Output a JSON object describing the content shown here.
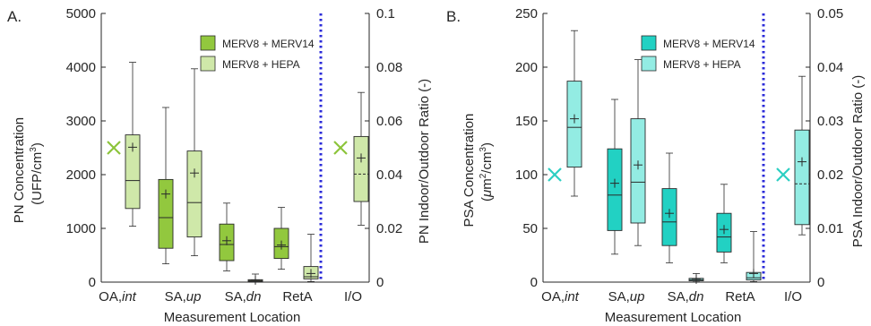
{
  "colors": {
    "a_merv14": "#92c83e",
    "a_hepa": "#cfe8a9",
    "a_cross": "#8cc43a",
    "b_merv14": "#22d1c3",
    "b_hepa": "#93ece3",
    "b_cross": "#2ccfc2",
    "divider": "#2b2bd9",
    "axis": "#262626",
    "box_edge": "#2a2a2a"
  },
  "shared": {
    "xlabel": "Measurement Location",
    "categories": [
      {
        "main": "OA,",
        "italic": "int"
      },
      {
        "main": "SA,",
        "italic": "up"
      },
      {
        "main": "SA,",
        "italic": "dn"
      },
      {
        "main": "RetA",
        "italic": ""
      },
      {
        "main": "I/O",
        "italic": ""
      }
    ],
    "legend": [
      "MERV8 + MERV14",
      "MERV8 + HEPA"
    ]
  },
  "chart_data": [
    {
      "type": "box",
      "panel_label": "A.",
      "ylabel_left_line1": "PN Concentration",
      "ylabel_left_line2": "(UFP/cm",
      "ylabel_left_sup": "3",
      "ylabel_left_tail": ")",
      "ylabel_right": "PN Indoor/Outdoor Ratio (-)",
      "ylim_left": [
        0,
        5000
      ],
      "ylim_right": [
        0,
        0.1
      ],
      "yticks_left": [
        "0",
        "1000",
        "2000",
        "3000",
        "4000",
        "5000"
      ],
      "yticks_right": [
        "0",
        "0.02",
        "0.04",
        "0.06",
        "0.08",
        "0.1"
      ],
      "boxes": [
        {
          "category": "OA,int",
          "series": "MERV8 + HEPA",
          "axis": "left",
          "whisker_low": 1040,
          "q1": 1370,
          "median": 1890,
          "q3": 2740,
          "whisker_high": 4090,
          "mean": 2510
        },
        {
          "category": "SA,up",
          "series": "MERV8 + MERV14",
          "axis": "left",
          "whisker_low": 340,
          "q1": 630,
          "median": 1200,
          "q3": 1910,
          "whisker_high": 3250,
          "mean": 1640
        },
        {
          "category": "SA,up",
          "series": "MERV8 + HEPA",
          "axis": "left",
          "whisker_low": 490,
          "q1": 840,
          "median": 1480,
          "q3": 2440,
          "whisker_high": 3970,
          "mean": 2030
        },
        {
          "category": "SA,dn",
          "series": "MERV8 + MERV14",
          "axis": "left",
          "whisker_low": 210,
          "q1": 400,
          "median": 700,
          "q3": 1080,
          "whisker_high": 1470,
          "mean": 770
        },
        {
          "category": "SA,dn",
          "series": "MERV8 + HEPA",
          "axis": "left",
          "whisker_low": 5,
          "q1": 15,
          "median": 30,
          "q3": 45,
          "whisker_high": 150,
          "mean": 35
        },
        {
          "category": "RetA",
          "series": "MERV8 + MERV14",
          "axis": "left",
          "whisker_low": 240,
          "q1": 440,
          "median": 660,
          "q3": 1000,
          "whisker_high": 1390,
          "mean": 690
        },
        {
          "category": "RetA",
          "series": "MERV8 + HEPA",
          "axis": "left",
          "whisker_low": 10,
          "q1": 60,
          "median": 100,
          "q3": 290,
          "whisker_high": 890,
          "mean": 160
        },
        {
          "category": "I/O",
          "series": "MERV8 + HEPA",
          "axis": "right",
          "whisker_low": 0.0212,
          "q1": 0.03,
          "median": 0.0402,
          "q3": 0.0542,
          "whisker_high": 0.0706,
          "mean": 0.0462,
          "median_dashed": true
        }
      ],
      "crosses": [
        {
          "category": "OA,int",
          "axis": "left",
          "value": 2500
        },
        {
          "category": "I/O",
          "axis": "right",
          "value": 0.05
        }
      ]
    },
    {
      "type": "box",
      "panel_label": "B.",
      "ylabel_left_line1": "PSA Concentration",
      "ylabel_left_mu": "μ",
      "ylabel_left_line2": "m",
      "ylabel_left_sup": "2",
      "ylabel_left_mid": "/cm",
      "ylabel_left_sup2": "3",
      "ylabel_left_tail": ")",
      "ylabel_right": "PSA Indoor/Outdoor Ratio (-)",
      "ylim_left": [
        0,
        250
      ],
      "ylim_right": [
        0,
        0.05
      ],
      "yticks_left": [
        "0",
        "50",
        "100",
        "150",
        "200",
        "250"
      ],
      "yticks_right": [
        "0",
        "0.01",
        "0.02",
        "0.03",
        "0.04",
        "0.05"
      ],
      "boxes": [
        {
          "category": "OA,int",
          "series": "MERV8 + HEPA",
          "axis": "left",
          "whisker_low": 80,
          "q1": 107,
          "median": 144,
          "q3": 187,
          "whisker_high": 234,
          "mean": 152
        },
        {
          "category": "SA,up",
          "series": "MERV8 + MERV14",
          "axis": "left",
          "whisker_low": 26,
          "q1": 48,
          "median": 81,
          "q3": 124,
          "whisker_high": 170,
          "mean": 92
        },
        {
          "category": "SA,up",
          "series": "MERV8 + HEPA",
          "axis": "left",
          "whisker_low": 34,
          "q1": 55,
          "median": 93,
          "q3": 152,
          "whisker_high": 207,
          "mean": 109
        },
        {
          "category": "SA,dn",
          "series": "MERV8 + MERV14",
          "axis": "left",
          "whisker_low": 18,
          "q1": 34,
          "median": 56,
          "q3": 87,
          "whisker_high": 120,
          "mean": 64
        },
        {
          "category": "SA,dn",
          "series": "MERV8 + HEPA",
          "axis": "left",
          "whisker_low": 0.3,
          "q1": 1.2,
          "median": 2.2,
          "q3": 3.5,
          "whisker_high": 8,
          "mean": 2.6
        },
        {
          "category": "RetA",
          "series": "MERV8 + MERV14",
          "axis": "left",
          "whisker_low": 18,
          "q1": 28,
          "median": 42,
          "q3": 64,
          "whisker_high": 91,
          "mean": 49
        },
        {
          "category": "RetA",
          "series": "MERV8 + HEPA",
          "axis": "left",
          "whisker_low": 0.5,
          "q1": 2,
          "median": 4,
          "q3": 9,
          "whisker_high": 47,
          "mean": 8
        },
        {
          "category": "I/O",
          "series": "MERV8 + HEPA",
          "axis": "right",
          "whisker_low": 0.0088,
          "q1": 0.0107,
          "median": 0.0183,
          "q3": 0.0283,
          "whisker_high": 0.0383,
          "mean": 0.0224,
          "median_dashed": true
        }
      ],
      "crosses": [
        {
          "category": "OA,int",
          "axis": "left",
          "value": 100
        },
        {
          "category": "I/O",
          "axis": "right",
          "value": 0.02
        }
      ]
    }
  ]
}
